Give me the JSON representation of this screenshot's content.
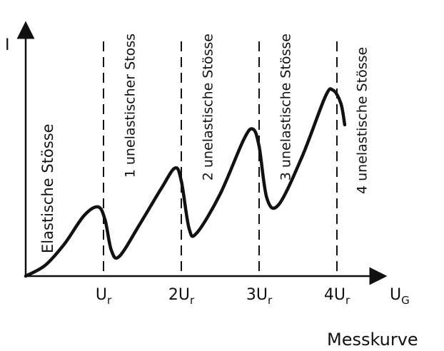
{
  "chart_data": {
    "type": "line",
    "title": "",
    "caption": "Messkurve",
    "ylabel": "I",
    "xlabel": "U",
    "xlabel_sub": "G",
    "x_ticks": [
      {
        "x": 1,
        "main": "U",
        "sub": "r"
      },
      {
        "x": 2,
        "main": "2U",
        "sub": "r"
      },
      {
        "x": 3,
        "main": "3U",
        "sub": "r"
      },
      {
        "x": 4,
        "main": "4U",
        "sub": "r"
      }
    ],
    "xlim": [
      0,
      4.5
    ],
    "ylim": [
      0,
      10
    ],
    "grid": false,
    "dashed_lines_at": [
      1,
      2,
      3,
      4
    ],
    "region_labels": [
      {
        "x": 0.35,
        "text": "Elastische Stösse"
      },
      {
        "x": 1.4,
        "text": "1 unelastischer Stoss"
      },
      {
        "x": 2.4,
        "text": "2 unelastische Stösse"
      },
      {
        "x": 3.4,
        "text": "3 unelastische Stösse"
      },
      {
        "x": 4.38,
        "text": "4 unelastische Stösse"
      }
    ],
    "series": [
      {
        "points": [
          [
            0.0,
            0.0
          ],
          [
            0.25,
            0.5
          ],
          [
            0.5,
            1.5
          ],
          [
            0.75,
            2.8
          ],
          [
            0.93,
            3.2
          ],
          [
            1.02,
            2.6
          ],
          [
            1.1,
            1.2
          ],
          [
            1.2,
            0.9
          ],
          [
            1.45,
            2.3
          ],
          [
            1.75,
            4.1
          ],
          [
            1.92,
            5.0
          ],
          [
            2.0,
            4.4
          ],
          [
            2.1,
            2.2
          ],
          [
            2.2,
            2.0
          ],
          [
            2.5,
            3.8
          ],
          [
            2.8,
            6.3
          ],
          [
            2.92,
            6.8
          ],
          [
            3.0,
            6.0
          ],
          [
            3.1,
            3.6
          ],
          [
            3.25,
            3.3
          ],
          [
            3.55,
            5.5
          ],
          [
            3.85,
            8.3
          ],
          [
            3.95,
            8.6
          ],
          [
            4.05,
            8.0
          ],
          [
            4.1,
            7.0
          ]
        ]
      }
    ]
  }
}
